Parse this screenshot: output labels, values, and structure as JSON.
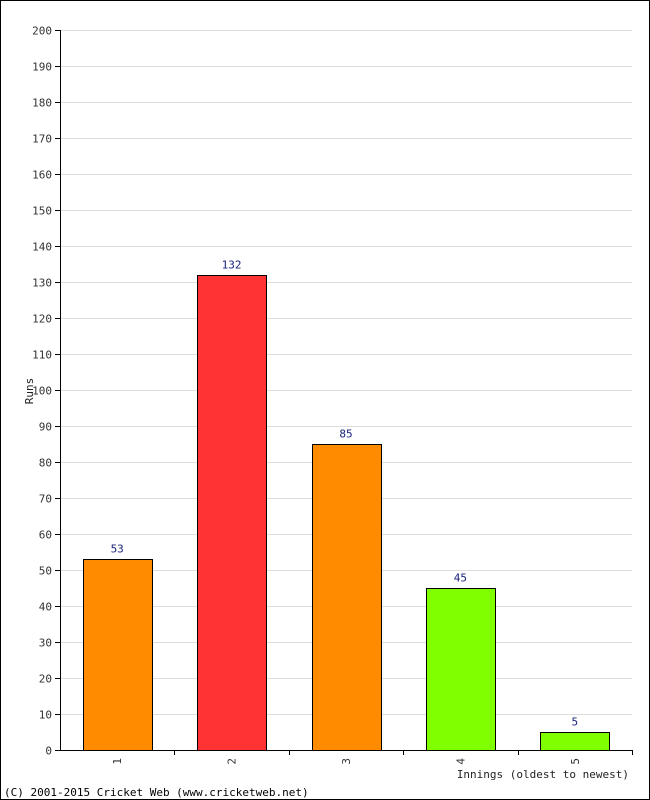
{
  "chart_data": {
    "type": "bar",
    "categories": [
      "1",
      "2",
      "3",
      "4",
      "5"
    ],
    "values": [
      53,
      132,
      85,
      45,
      5
    ],
    "bar_colors": [
      "#ff8c00",
      "#ff3333",
      "#ff8c00",
      "#80ff00",
      "#80ff00"
    ],
    "title": "",
    "xlabel": "Innings (oldest to newest)",
    "ylabel": "Runs",
    "ylim": [
      0,
      200
    ],
    "ytick_step": 10,
    "grid": true,
    "data_labels": true
  },
  "footer": {
    "copyright": "(C) 2001-2015 Cricket Web (www.cricketweb.net)"
  },
  "colors": {
    "grid": "#dddddd",
    "axis": "#000000",
    "bar_edge": "#000000",
    "label": "#1a237e"
  }
}
